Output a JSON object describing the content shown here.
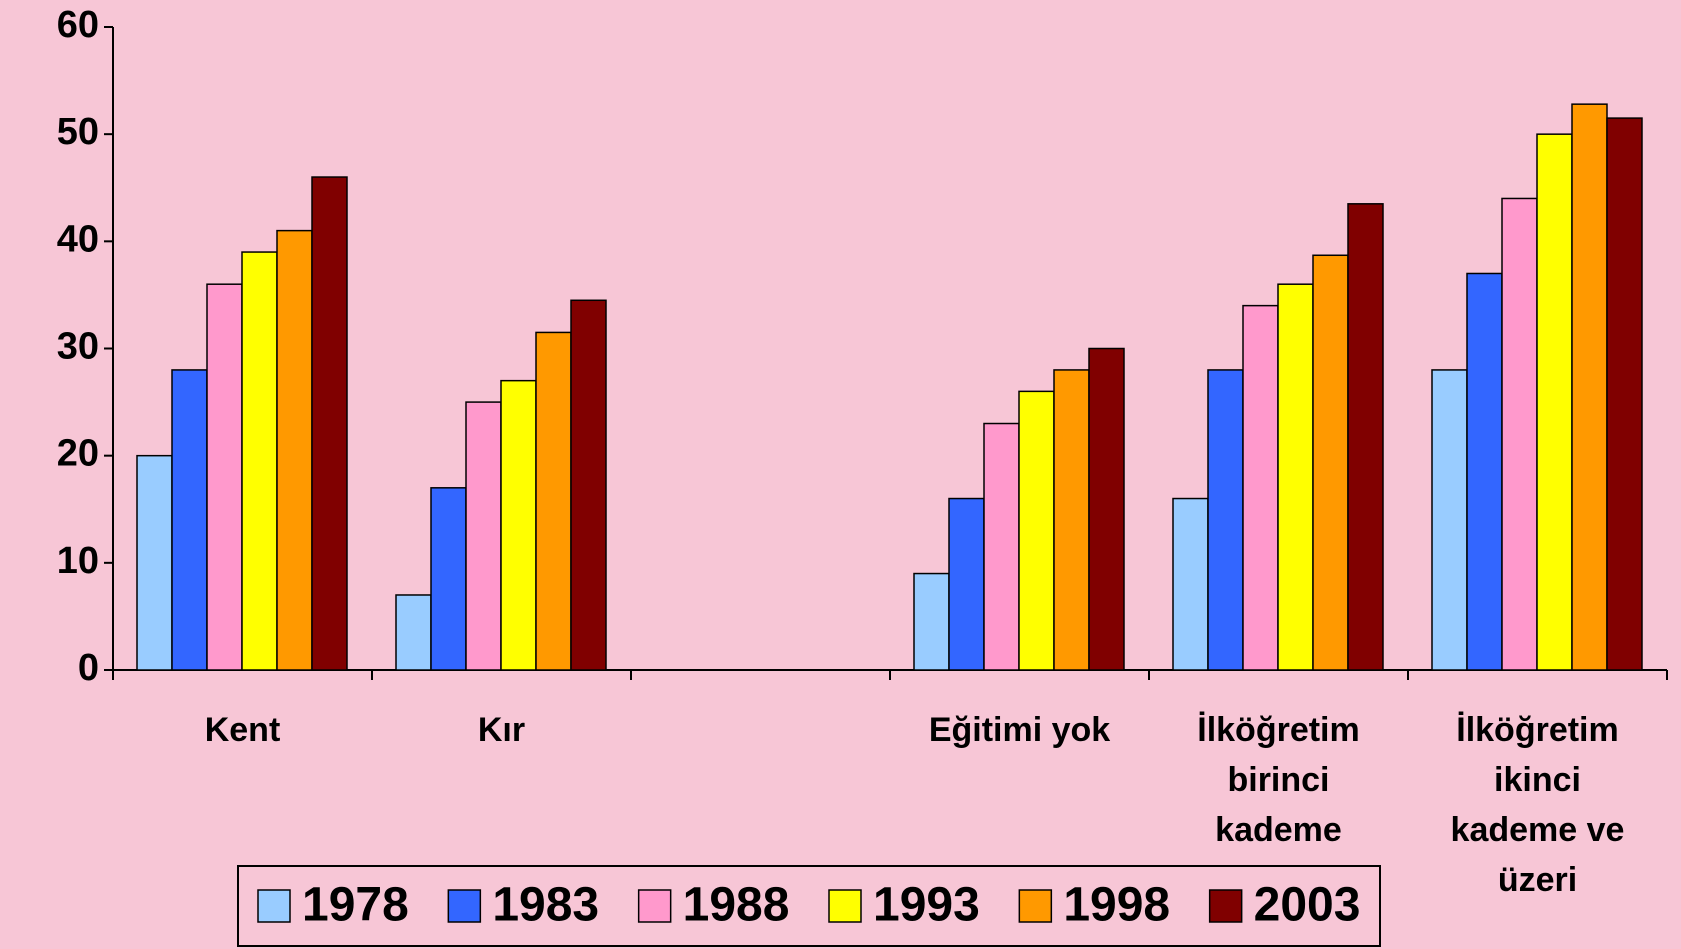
{
  "chart_data": {
    "type": "bar",
    "categories": [
      "Kent",
      "Kır",
      null,
      "Eğitimi yok",
      "İlköğretim birinci kademe",
      "İlköğretim ikinci kademe ve üzeri"
    ],
    "series": [
      {
        "name": "1978",
        "color": "#99ccff",
        "values": [
          20,
          7,
          null,
          9,
          16,
          28
        ]
      },
      {
        "name": "1983",
        "color": "#3366ff",
        "values": [
          28,
          17,
          null,
          16,
          28,
          37
        ]
      },
      {
        "name": "1988",
        "color": "#ff99cc",
        "values": [
          36,
          25,
          null,
          23,
          34,
          44
        ]
      },
      {
        "name": "1993",
        "color": "#ffff00",
        "values": [
          39,
          27,
          null,
          26,
          36,
          50
        ]
      },
      {
        "name": "1998",
        "color": "#ff9900",
        "values": [
          41,
          31.5,
          null,
          28,
          38.7,
          52.8
        ]
      },
      {
        "name": "2003",
        "color": "#800000",
        "values": [
          46,
          34.5,
          null,
          30,
          43.5,
          51.5
        ]
      }
    ],
    "ylim": [
      0,
      60
    ],
    "yticks": [
      0,
      10,
      20,
      30,
      40,
      50,
      60
    ],
    "legend": "bottom"
  }
}
